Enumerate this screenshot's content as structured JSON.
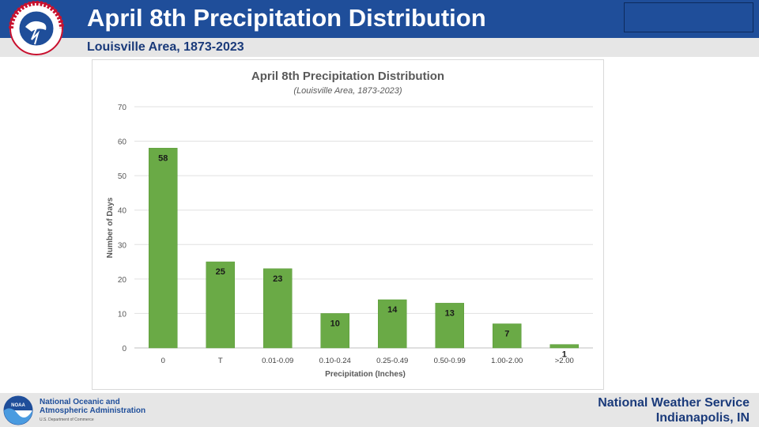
{
  "header": {
    "title": "April 8th Precipitation Distribution",
    "subtitle": "Louisville Area, 1873-2023",
    "header_color": "#1f4e9a"
  },
  "logos": {
    "nws_logo": {
      "text": "NATIONAL WEATHER SERVICE",
      "icon": "nws-logo-icon"
    },
    "noaa_logo": {
      "text": "NOAA",
      "icon": "noaa-logo-icon"
    }
  },
  "footer": {
    "noaa_name_line1": "National Oceanic and",
    "noaa_name_line2": "Atmospheric Administration",
    "noaa_dept": "U.S. Department of Commerce",
    "office_line1": "National Weather Service",
    "office_line2": "Indianapolis, IN"
  },
  "chart_data": {
    "type": "bar",
    "title": "April 8th Precipitation Distribution",
    "subtitle": "(Louisville Area, 1873-2023)",
    "xlabel": "Precipitation (Inches)",
    "ylabel": "Number of Days",
    "categories": [
      "0",
      "T",
      "0.01-0.09",
      "0.10-0.24",
      "0.25-0.49",
      "0.50-0.99",
      "1.00-2.00",
      ">2.00"
    ],
    "values": [
      58,
      25,
      23,
      10,
      14,
      13,
      7,
      1
    ],
    "ylim": [
      0,
      70
    ],
    "yticks": [
      0,
      10,
      20,
      30,
      40,
      50,
      60,
      70
    ],
    "grid": true,
    "bar_color": "#6aaa46",
    "data_labels": true
  }
}
